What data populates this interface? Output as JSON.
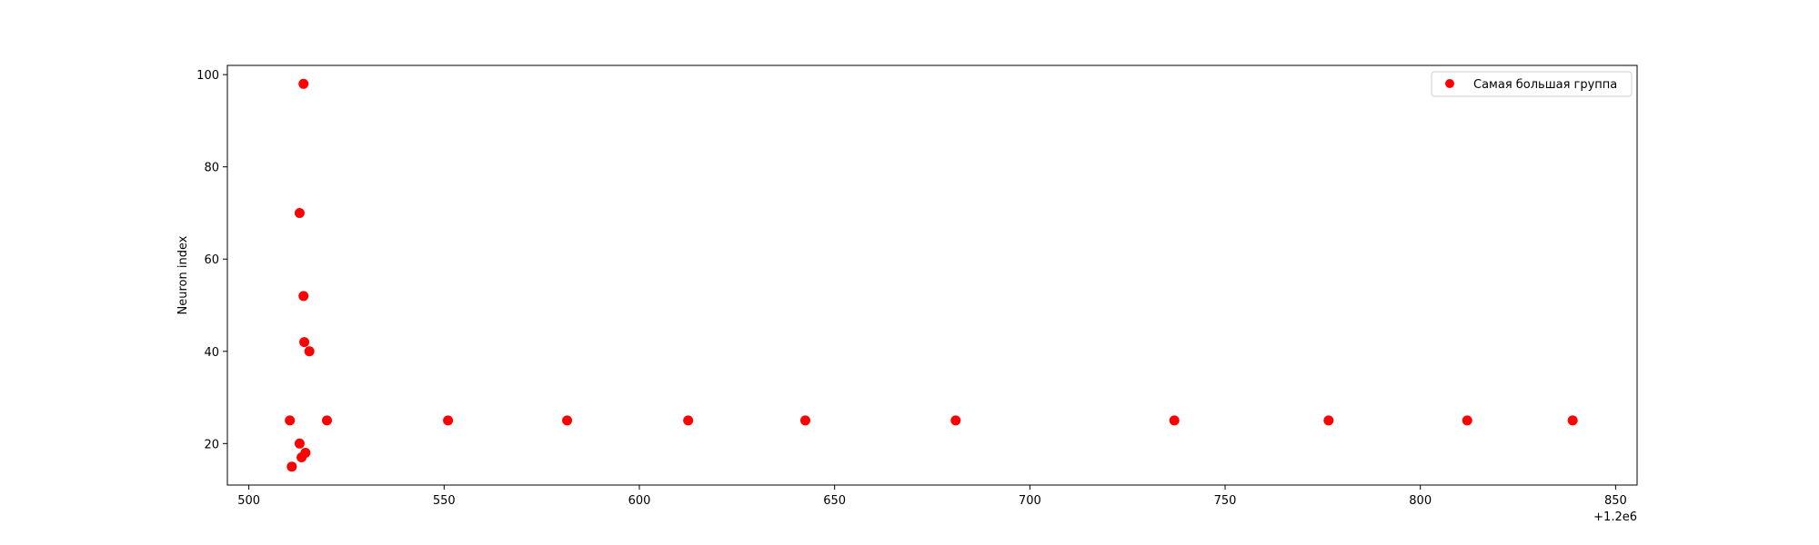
{
  "chart_data": {
    "type": "scatter",
    "title": "",
    "xlabel": "",
    "ylabel": "Neuron index",
    "x_offset_label": "+1.2e6",
    "xlim": [
      494.5,
      855.5
    ],
    "ylim": [
      11,
      102
    ],
    "x_ticks": [
      500,
      550,
      600,
      650,
      700,
      750,
      800,
      850
    ],
    "y_ticks": [
      20,
      40,
      60,
      80,
      100
    ],
    "grid": false,
    "legend_position": "top-right",
    "series": [
      {
        "name": "Самая большая группа",
        "color": "#ff0000",
        "marker": "circle",
        "x": [
          510.5,
          511,
          513,
          513,
          513.5,
          514,
          514,
          514.2,
          514.5,
          515.5,
          520,
          551,
          581.5,
          612.5,
          642.5,
          681,
          737,
          776.5,
          812,
          839
        ],
        "y": [
          25,
          15,
          20,
          70,
          17,
          98,
          52,
          42,
          18,
          40,
          25,
          25,
          25,
          25,
          25,
          25,
          25,
          25,
          25,
          25
        ]
      }
    ]
  }
}
